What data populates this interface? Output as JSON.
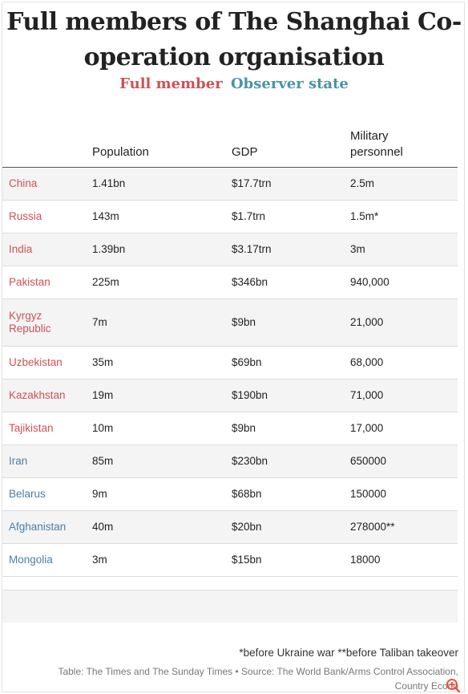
{
  "title": {
    "line1": "Full members of The Shanghai Co-",
    "line2": "operation organisation"
  },
  "legend": {
    "full_member": "Full member",
    "observer_state": "Observer state",
    "colors": {
      "full_member": "#d05058",
      "observer_state": "#4a94a8"
    }
  },
  "table": {
    "headers": [
      "",
      "Population",
      "GDP",
      "Military personnel"
    ],
    "header_military_line1": "Military",
    "header_military_line2": "personnel",
    "rows": [
      {
        "country": "China",
        "population": "1.41bn",
        "gdp": "$17.7trn",
        "military": "2.5m",
        "status": "full"
      },
      {
        "country": "Russia",
        "population": "143m",
        "gdp": "$1.7trn",
        "military": "1.5m*",
        "status": "full"
      },
      {
        "country": "India",
        "population": "1.39bn",
        "gdp": "$3.17trn",
        "military": "3m",
        "status": "full"
      },
      {
        "country": "Pakistan",
        "population": "225m",
        "gdp": "$346bn",
        "military": "940,000",
        "status": "full"
      },
      {
        "country_line1": "Kyrgyz",
        "country_line2": "Republic",
        "population": "7m",
        "gdp": "$9bn",
        "military": "21,000",
        "status": "full"
      },
      {
        "country": "Uzbekistan",
        "population": "35m",
        "gdp": "$69bn",
        "military": "68,000",
        "status": "full"
      },
      {
        "country": "Kazakhstan",
        "population": "19m",
        "gdp": "$190bn",
        "military": "71,000",
        "status": "full"
      },
      {
        "country": "Tajikistan",
        "population": "10m",
        "gdp": "$9bn",
        "military": "17,000",
        "status": "full"
      },
      {
        "country": "Iran",
        "population": "85m",
        "gdp": "$230bn",
        "military": "650000",
        "status": "observer"
      },
      {
        "country": "Belarus",
        "population": "9m",
        "gdp": "$68bn",
        "military": "150000",
        "status": "observer"
      },
      {
        "country": "Afghanistan",
        "population": "40m",
        "gdp": "$20bn",
        "military": "278000**",
        "status": "observer"
      },
      {
        "country": "Mongolia",
        "population": "3m",
        "gdp": "$15bn",
        "military": "18000",
        "status": "observer"
      }
    ]
  },
  "footnotes": {
    "notes": "*before Ukraine war **before Taliban takeover",
    "source_line1": "Table: The Times and The Sunday Times • Source: The World Bank/Arms Control Association,",
    "source_line2": "Country Econo"
  },
  "icons": {
    "zoom": "zoom-in-icon"
  }
}
